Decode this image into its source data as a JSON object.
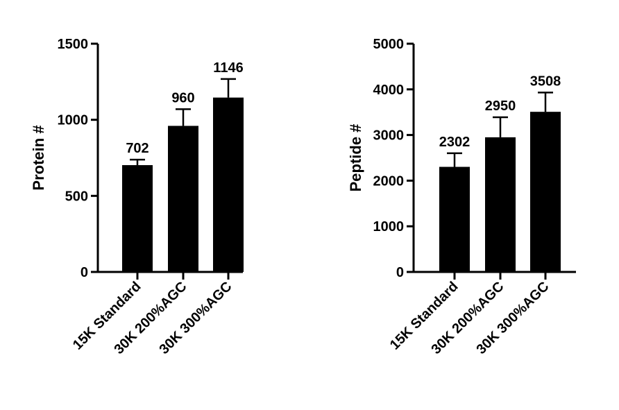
{
  "chart_data": [
    {
      "type": "bar",
      "ylabel": "Protein #",
      "xlabel": "",
      "categories": [
        "15K Standard",
        "30K 200%AGC",
        "30K 300%AGC"
      ],
      "values": [
        702,
        960,
        1146
      ],
      "error_upper": [
        738,
        1070,
        1268
      ],
      "data_labels": [
        "702",
        "960",
        "1146"
      ],
      "ylim": [
        0,
        1500
      ],
      "yticks": [
        0,
        500,
        1000,
        1500
      ],
      "ytick_labels": [
        "0",
        "500",
        "1000",
        "1500"
      ],
      "bar_color": "#000000",
      "grid": false
    },
    {
      "type": "bar",
      "ylabel": "Peptide #",
      "xlabel": "",
      "categories": [
        "15K Standard",
        "30K 200%AGC",
        "30K 300%AGC"
      ],
      "values": [
        2302,
        2950,
        3508
      ],
      "error_upper": [
        2600,
        3390,
        3930
      ],
      "data_labels": [
        "2302",
        "2950",
        "3508"
      ],
      "ylim": [
        0,
        5000
      ],
      "yticks": [
        0,
        1000,
        2000,
        3000,
        4000,
        5000
      ],
      "ytick_labels": [
        "0",
        "1000",
        "2000",
        "3000",
        "4000",
        "5000"
      ],
      "bar_color": "#000000",
      "grid": false
    }
  ]
}
